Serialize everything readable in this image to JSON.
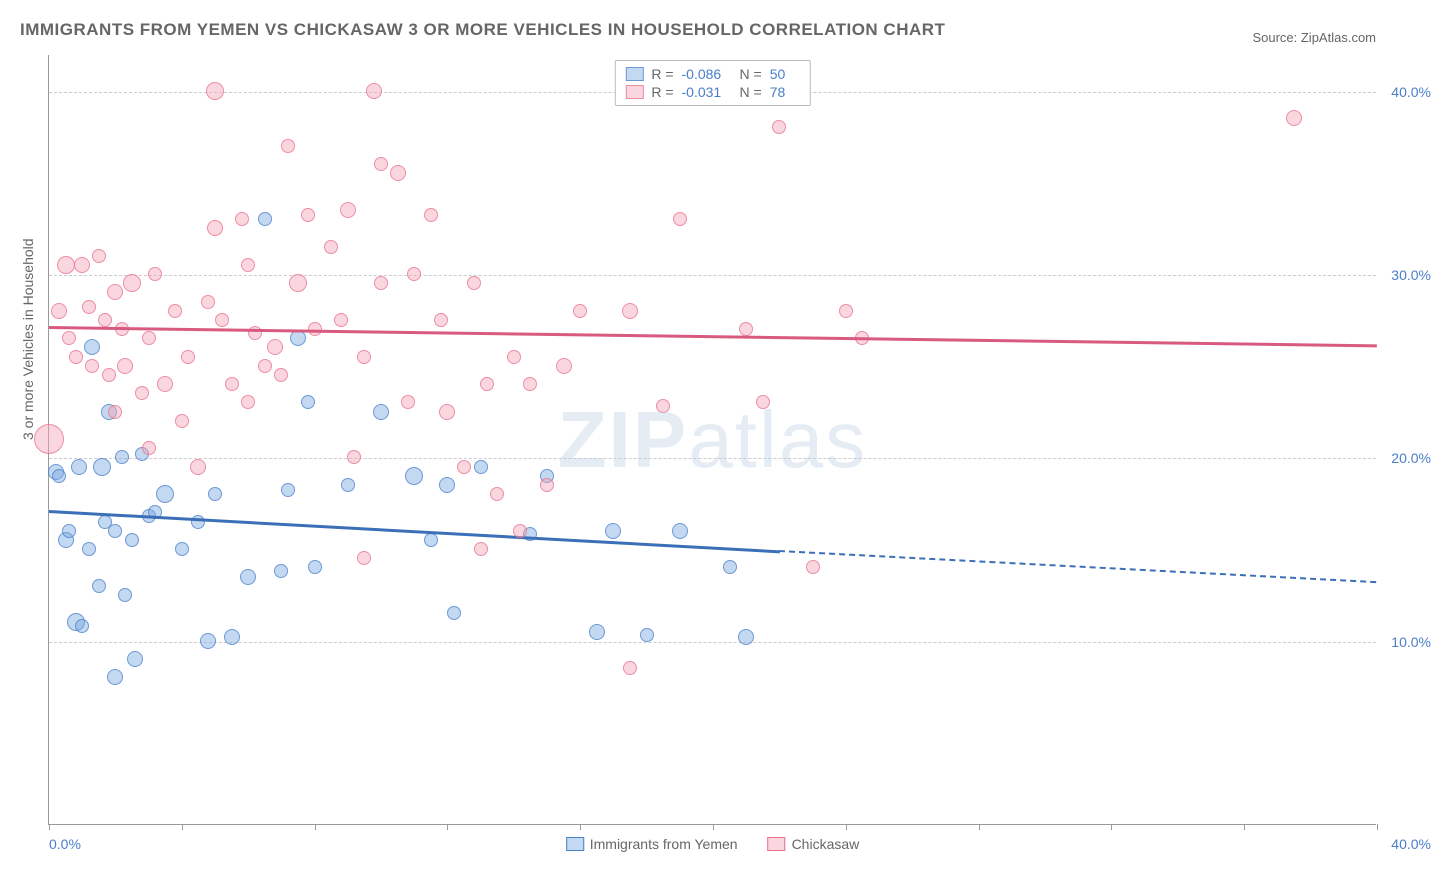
{
  "title": "IMMIGRANTS FROM YEMEN VS CHICKASAW 3 OR MORE VEHICLES IN HOUSEHOLD CORRELATION CHART",
  "source": "Source: ZipAtlas.com",
  "watermark_bold": "ZIP",
  "watermark_light": "atlas",
  "chart": {
    "type": "scatter",
    "xlim": [
      0,
      40
    ],
    "ylim": [
      0,
      42
    ],
    "background_color": "#ffffff",
    "grid_color": "#cccccc",
    "axis_color": "#999999",
    "ylabel": "3 or more Vehicles in Household",
    "ylabel_fontsize": 14,
    "ylabel_color": "#666666",
    "tick_color": "#4a7ec9",
    "tick_fontsize": 14,
    "yticks": [
      {
        "value": 10,
        "label": "10.0%"
      },
      {
        "value": 20,
        "label": "20.0%"
      },
      {
        "value": 30,
        "label": "30.0%"
      },
      {
        "value": 40,
        "label": "40.0%"
      }
    ],
    "xticks": [
      {
        "value": 0,
        "label": "0.0%"
      },
      {
        "value": 4,
        "label": null
      },
      {
        "value": 8,
        "label": null
      },
      {
        "value": 12,
        "label": null
      },
      {
        "value": 16,
        "label": null
      },
      {
        "value": 20,
        "label": null
      },
      {
        "value": 24,
        "label": null
      },
      {
        "value": 28,
        "label": null
      },
      {
        "value": 32,
        "label": null
      },
      {
        "value": 36,
        "label": null
      },
      {
        "value": 40,
        "label": "40.0%"
      }
    ],
    "series": [
      {
        "name": "Immigrants from Yemen",
        "color_fill": "rgba(122,169,224,0.45)",
        "color_stroke": "rgba(74,126,201,0.7)",
        "trend_color": "#3b6fb8",
        "R": "-0.086",
        "N": "50",
        "trend": {
          "x1": 0,
          "y1": 17.2,
          "x2": 22,
          "y2": 15.0,
          "x2_dash": 40,
          "y2_dash": 13.3
        },
        "points": [
          {
            "x": 0.2,
            "y": 19.2,
            "size": 16
          },
          {
            "x": 0.3,
            "y": 19.0,
            "size": 14
          },
          {
            "x": 0.5,
            "y": 15.5,
            "size": 16
          },
          {
            "x": 0.6,
            "y": 16.0,
            "size": 14
          },
          {
            "x": 0.8,
            "y": 11.0,
            "size": 18
          },
          {
            "x": 0.9,
            "y": 19.5,
            "size": 16
          },
          {
            "x": 1.0,
            "y": 10.8,
            "size": 14
          },
          {
            "x": 1.2,
            "y": 15.0,
            "size": 14
          },
          {
            "x": 1.3,
            "y": 26.0,
            "size": 16
          },
          {
            "x": 1.5,
            "y": 13.0,
            "size": 14
          },
          {
            "x": 1.6,
            "y": 19.5,
            "size": 18
          },
          {
            "x": 1.7,
            "y": 16.5,
            "size": 14
          },
          {
            "x": 1.8,
            "y": 22.5,
            "size": 16
          },
          {
            "x": 2.0,
            "y": 16.0,
            "size": 14
          },
          {
            "x": 2.0,
            "y": 8.0,
            "size": 16
          },
          {
            "x": 2.2,
            "y": 20.0,
            "size": 14
          },
          {
            "x": 2.3,
            "y": 12.5,
            "size": 14
          },
          {
            "x": 2.5,
            "y": 15.5,
            "size": 14
          },
          {
            "x": 2.6,
            "y": 9.0,
            "size": 16
          },
          {
            "x": 2.8,
            "y": 20.2,
            "size": 14
          },
          {
            "x": 3.0,
            "y": 16.8,
            "size": 14
          },
          {
            "x": 3.2,
            "y": 17.0,
            "size": 14
          },
          {
            "x": 3.5,
            "y": 18.0,
            "size": 18
          },
          {
            "x": 4.0,
            "y": 15.0,
            "size": 14
          },
          {
            "x": 4.5,
            "y": 16.5,
            "size": 14
          },
          {
            "x": 4.8,
            "y": 10.0,
            "size": 16
          },
          {
            "x": 5.0,
            "y": 18.0,
            "size": 14
          },
          {
            "x": 5.5,
            "y": 10.2,
            "size": 16
          },
          {
            "x": 6.0,
            "y": 13.5,
            "size": 16
          },
          {
            "x": 6.5,
            "y": 33.0,
            "size": 14
          },
          {
            "x": 7.0,
            "y": 13.8,
            "size": 14
          },
          {
            "x": 7.2,
            "y": 18.2,
            "size": 14
          },
          {
            "x": 7.5,
            "y": 26.5,
            "size": 16
          },
          {
            "x": 8.0,
            "y": 14.0,
            "size": 14
          },
          {
            "x": 9.0,
            "y": 18.5,
            "size": 14
          },
          {
            "x": 10.0,
            "y": 22.5,
            "size": 16
          },
          {
            "x": 11.0,
            "y": 19.0,
            "size": 18
          },
          {
            "x": 11.5,
            "y": 15.5,
            "size": 14
          },
          {
            "x": 12.0,
            "y": 18.5,
            "size": 16
          },
          {
            "x": 12.2,
            "y": 11.5,
            "size": 14
          },
          {
            "x": 13.0,
            "y": 19.5,
            "size": 14
          },
          {
            "x": 14.5,
            "y": 15.8,
            "size": 14
          },
          {
            "x": 15.0,
            "y": 19.0,
            "size": 14
          },
          {
            "x": 16.5,
            "y": 10.5,
            "size": 16
          },
          {
            "x": 17.0,
            "y": 16.0,
            "size": 16
          },
          {
            "x": 18.0,
            "y": 10.3,
            "size": 14
          },
          {
            "x": 19.0,
            "y": 16.0,
            "size": 16
          },
          {
            "x": 20.5,
            "y": 14.0,
            "size": 14
          },
          {
            "x": 21.0,
            "y": 10.2,
            "size": 16
          },
          {
            "x": 7.8,
            "y": 23.0,
            "size": 14
          }
        ]
      },
      {
        "name": "Chickasaw",
        "color_fill": "rgba(244,164,184,0.45)",
        "color_stroke": "rgba(232,110,140,0.7)",
        "trend_color": "#d85a7f",
        "R": "-0.031",
        "N": "78",
        "trend": {
          "x1": 0,
          "y1": 27.2,
          "x2": 40,
          "y2": 26.2,
          "x2_dash": 40,
          "y2_dash": 26.2
        },
        "points": [
          {
            "x": 0.0,
            "y": 21.0,
            "size": 30
          },
          {
            "x": 0.3,
            "y": 28.0,
            "size": 16
          },
          {
            "x": 0.5,
            "y": 30.5,
            "size": 18
          },
          {
            "x": 0.8,
            "y": 25.5,
            "size": 14
          },
          {
            "x": 1.0,
            "y": 30.5,
            "size": 16
          },
          {
            "x": 1.2,
            "y": 28.2,
            "size": 14
          },
          {
            "x": 1.5,
            "y": 31.0,
            "size": 14
          },
          {
            "x": 1.8,
            "y": 24.5,
            "size": 14
          },
          {
            "x": 2.0,
            "y": 29.0,
            "size": 16
          },
          {
            "x": 2.2,
            "y": 27.0,
            "size": 14
          },
          {
            "x": 2.3,
            "y": 25.0,
            "size": 16
          },
          {
            "x": 2.5,
            "y": 29.5,
            "size": 18
          },
          {
            "x": 2.8,
            "y": 23.5,
            "size": 14
          },
          {
            "x": 3.0,
            "y": 26.5,
            "size": 14
          },
          {
            "x": 3.2,
            "y": 30.0,
            "size": 14
          },
          {
            "x": 3.5,
            "y": 24.0,
            "size": 16
          },
          {
            "x": 3.8,
            "y": 28.0,
            "size": 14
          },
          {
            "x": 4.0,
            "y": 22.0,
            "size": 14
          },
          {
            "x": 4.2,
            "y": 25.5,
            "size": 14
          },
          {
            "x": 4.5,
            "y": 19.5,
            "size": 16
          },
          {
            "x": 5.0,
            "y": 32.5,
            "size": 16
          },
          {
            "x": 5.0,
            "y": 40.0,
            "size": 18
          },
          {
            "x": 5.2,
            "y": 27.5,
            "size": 14
          },
          {
            "x": 5.5,
            "y": 24.0,
            "size": 14
          },
          {
            "x": 5.8,
            "y": 33.0,
            "size": 14
          },
          {
            "x": 6.0,
            "y": 23.0,
            "size": 14
          },
          {
            "x": 6.2,
            "y": 26.8,
            "size": 14
          },
          {
            "x": 6.5,
            "y": 25.0,
            "size": 14
          },
          {
            "x": 6.8,
            "y": 26.0,
            "size": 16
          },
          {
            "x": 7.0,
            "y": 24.5,
            "size": 14
          },
          {
            "x": 7.2,
            "y": 37.0,
            "size": 14
          },
          {
            "x": 7.5,
            "y": 29.5,
            "size": 18
          },
          {
            "x": 7.8,
            "y": 33.2,
            "size": 14
          },
          {
            "x": 8.0,
            "y": 27.0,
            "size": 14
          },
          {
            "x": 8.5,
            "y": 31.5,
            "size": 14
          },
          {
            "x": 9.0,
            "y": 33.5,
            "size": 16
          },
          {
            "x": 9.2,
            "y": 20.0,
            "size": 14
          },
          {
            "x": 9.5,
            "y": 25.5,
            "size": 14
          },
          {
            "x": 9.8,
            "y": 40.0,
            "size": 16
          },
          {
            "x": 10.0,
            "y": 29.5,
            "size": 14
          },
          {
            "x": 10.0,
            "y": 36.0,
            "size": 14
          },
          {
            "x": 10.5,
            "y": 35.5,
            "size": 16
          },
          {
            "x": 10.8,
            "y": 23.0,
            "size": 14
          },
          {
            "x": 11.0,
            "y": 30.0,
            "size": 14
          },
          {
            "x": 11.5,
            "y": 33.2,
            "size": 14
          },
          {
            "x": 12.0,
            "y": 22.5,
            "size": 16
          },
          {
            "x": 12.5,
            "y": 19.5,
            "size": 14
          },
          {
            "x": 13.0,
            "y": 15.0,
            "size": 14
          },
          {
            "x": 13.2,
            "y": 24.0,
            "size": 14
          },
          {
            "x": 13.5,
            "y": 18.0,
            "size": 14
          },
          {
            "x": 14.0,
            "y": 25.5,
            "size": 14
          },
          {
            "x": 14.2,
            "y": 16.0,
            "size": 14
          },
          {
            "x": 14.5,
            "y": 24.0,
            "size": 14
          },
          {
            "x": 15.0,
            "y": 18.5,
            "size": 14
          },
          {
            "x": 15.5,
            "y": 25.0,
            "size": 16
          },
          {
            "x": 16.0,
            "y": 28.0,
            "size": 14
          },
          {
            "x": 17.5,
            "y": 28.0,
            "size": 16
          },
          {
            "x": 17.5,
            "y": 8.5,
            "size": 14
          },
          {
            "x": 18.5,
            "y": 22.8,
            "size": 14
          },
          {
            "x": 19.0,
            "y": 33.0,
            "size": 14
          },
          {
            "x": 21.0,
            "y": 27.0,
            "size": 14
          },
          {
            "x": 21.5,
            "y": 23.0,
            "size": 14
          },
          {
            "x": 22.0,
            "y": 38.0,
            "size": 14
          },
          {
            "x": 23.0,
            "y": 14.0,
            "size": 14
          },
          {
            "x": 24.0,
            "y": 28.0,
            "size": 14
          },
          {
            "x": 24.5,
            "y": 26.5,
            "size": 14
          },
          {
            "x": 37.5,
            "y": 38.5,
            "size": 16
          },
          {
            "x": 3.0,
            "y": 20.5,
            "size": 14
          },
          {
            "x": 4.8,
            "y": 28.5,
            "size": 14
          },
          {
            "x": 6.0,
            "y": 30.5,
            "size": 14
          },
          {
            "x": 1.3,
            "y": 25.0,
            "size": 14
          },
          {
            "x": 2.0,
            "y": 22.5,
            "size": 14
          },
          {
            "x": 8.8,
            "y": 27.5,
            "size": 14
          },
          {
            "x": 0.6,
            "y": 26.5,
            "size": 14
          },
          {
            "x": 1.7,
            "y": 27.5,
            "size": 14
          },
          {
            "x": 11.8,
            "y": 27.5,
            "size": 14
          },
          {
            "x": 12.8,
            "y": 29.5,
            "size": 14
          },
          {
            "x": 9.5,
            "y": 14.5,
            "size": 14
          }
        ]
      }
    ],
    "legend_top": {
      "R_label": "R =",
      "N_label": "N ="
    },
    "legend_bottom": [
      {
        "label": "Immigrants from Yemen",
        "fill": "rgba(122,169,224,0.45)",
        "stroke": "#4a7ec9"
      },
      {
        "label": "Chickasaw",
        "fill": "rgba(244,164,184,0.45)",
        "stroke": "#e86e8c"
      }
    ]
  }
}
